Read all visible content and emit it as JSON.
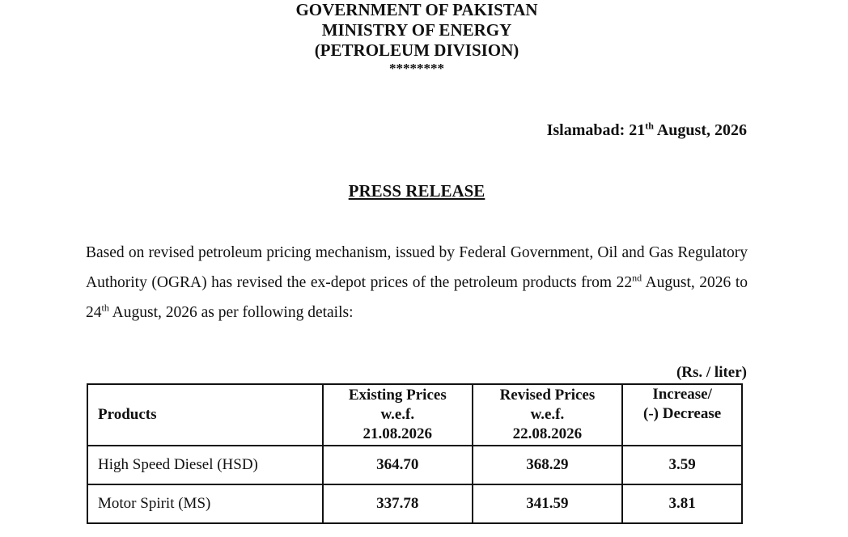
{
  "header": {
    "lines": [
      "GOVERNMENT OF PAKISTAN",
      "MINISTRY OF ENERGY",
      "(PETROLEUM DIVISION)",
      "********"
    ]
  },
  "date": {
    "before": "Islamabad: 21",
    "sup": "th",
    "after": " August, 2026"
  },
  "title": "PRESS RELEASE",
  "paragraph": {
    "part1": "Based on revised petroleum pricing mechanism, issued by Federal Government, Oil and Gas Regulatory Authority (OGRA) has revised the ex-depot prices of the petroleum products from 22",
    "sup1": "nd",
    "part2": " August, 2026 to 24",
    "sup2": "th",
    "part3": " August, 2026 as per following details:"
  },
  "table": {
    "unit": "(Rs. / liter)",
    "header": {
      "products": "Products",
      "existing": [
        "Existing Prices",
        "w.e.f.",
        "21.08.2026"
      ],
      "revised": [
        "Revised Prices",
        "w.e.f.",
        "22.08.2026"
      ],
      "change": [
        "Increase/",
        "(-) Decrease"
      ]
    },
    "rows": [
      [
        "High Speed Diesel (HSD)",
        "364.70",
        "368.29",
        "3.59"
      ],
      [
        "Motor Spirit (MS)",
        "337.78",
        "341.59",
        "3.81"
      ]
    ]
  }
}
